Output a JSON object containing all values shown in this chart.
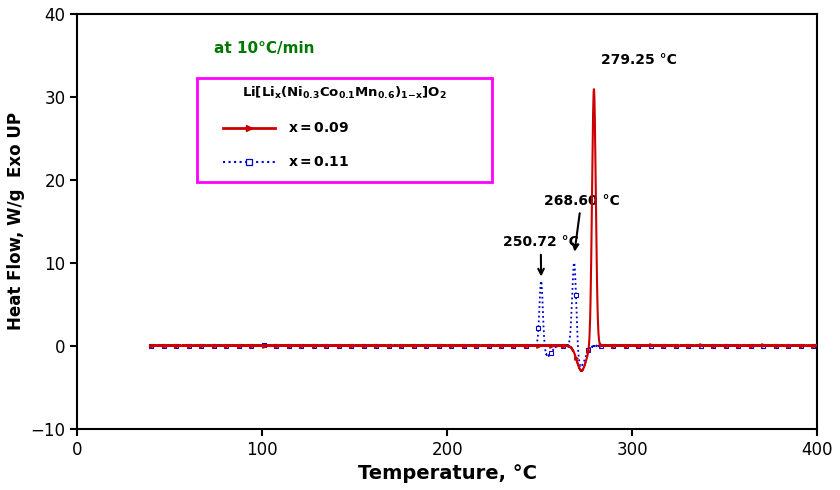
{
  "xlim": [
    40,
    400
  ],
  "ylim": [
    -10,
    40
  ],
  "xlabel": "Temperature, °C",
  "ylabel": "Heat Flow, W/g  Exo UP",
  "annotation_rate": "at 10°C/min",
  "peak_red_label": "279.25 °C",
  "peak_blue1_label": "250.72 °C",
  "peak_blue2_label": "268.60 °C",
  "color_red": "#cc0000",
  "color_blue": "#0000cc",
  "color_green_text": "#007700",
  "color_magenta_box": "#ff00ff",
  "background_color": "#ffffff",
  "xticks": [
    0,
    100,
    200,
    300,
    400
  ],
  "yticks": [
    -10,
    0,
    10,
    20,
    30,
    40
  ]
}
